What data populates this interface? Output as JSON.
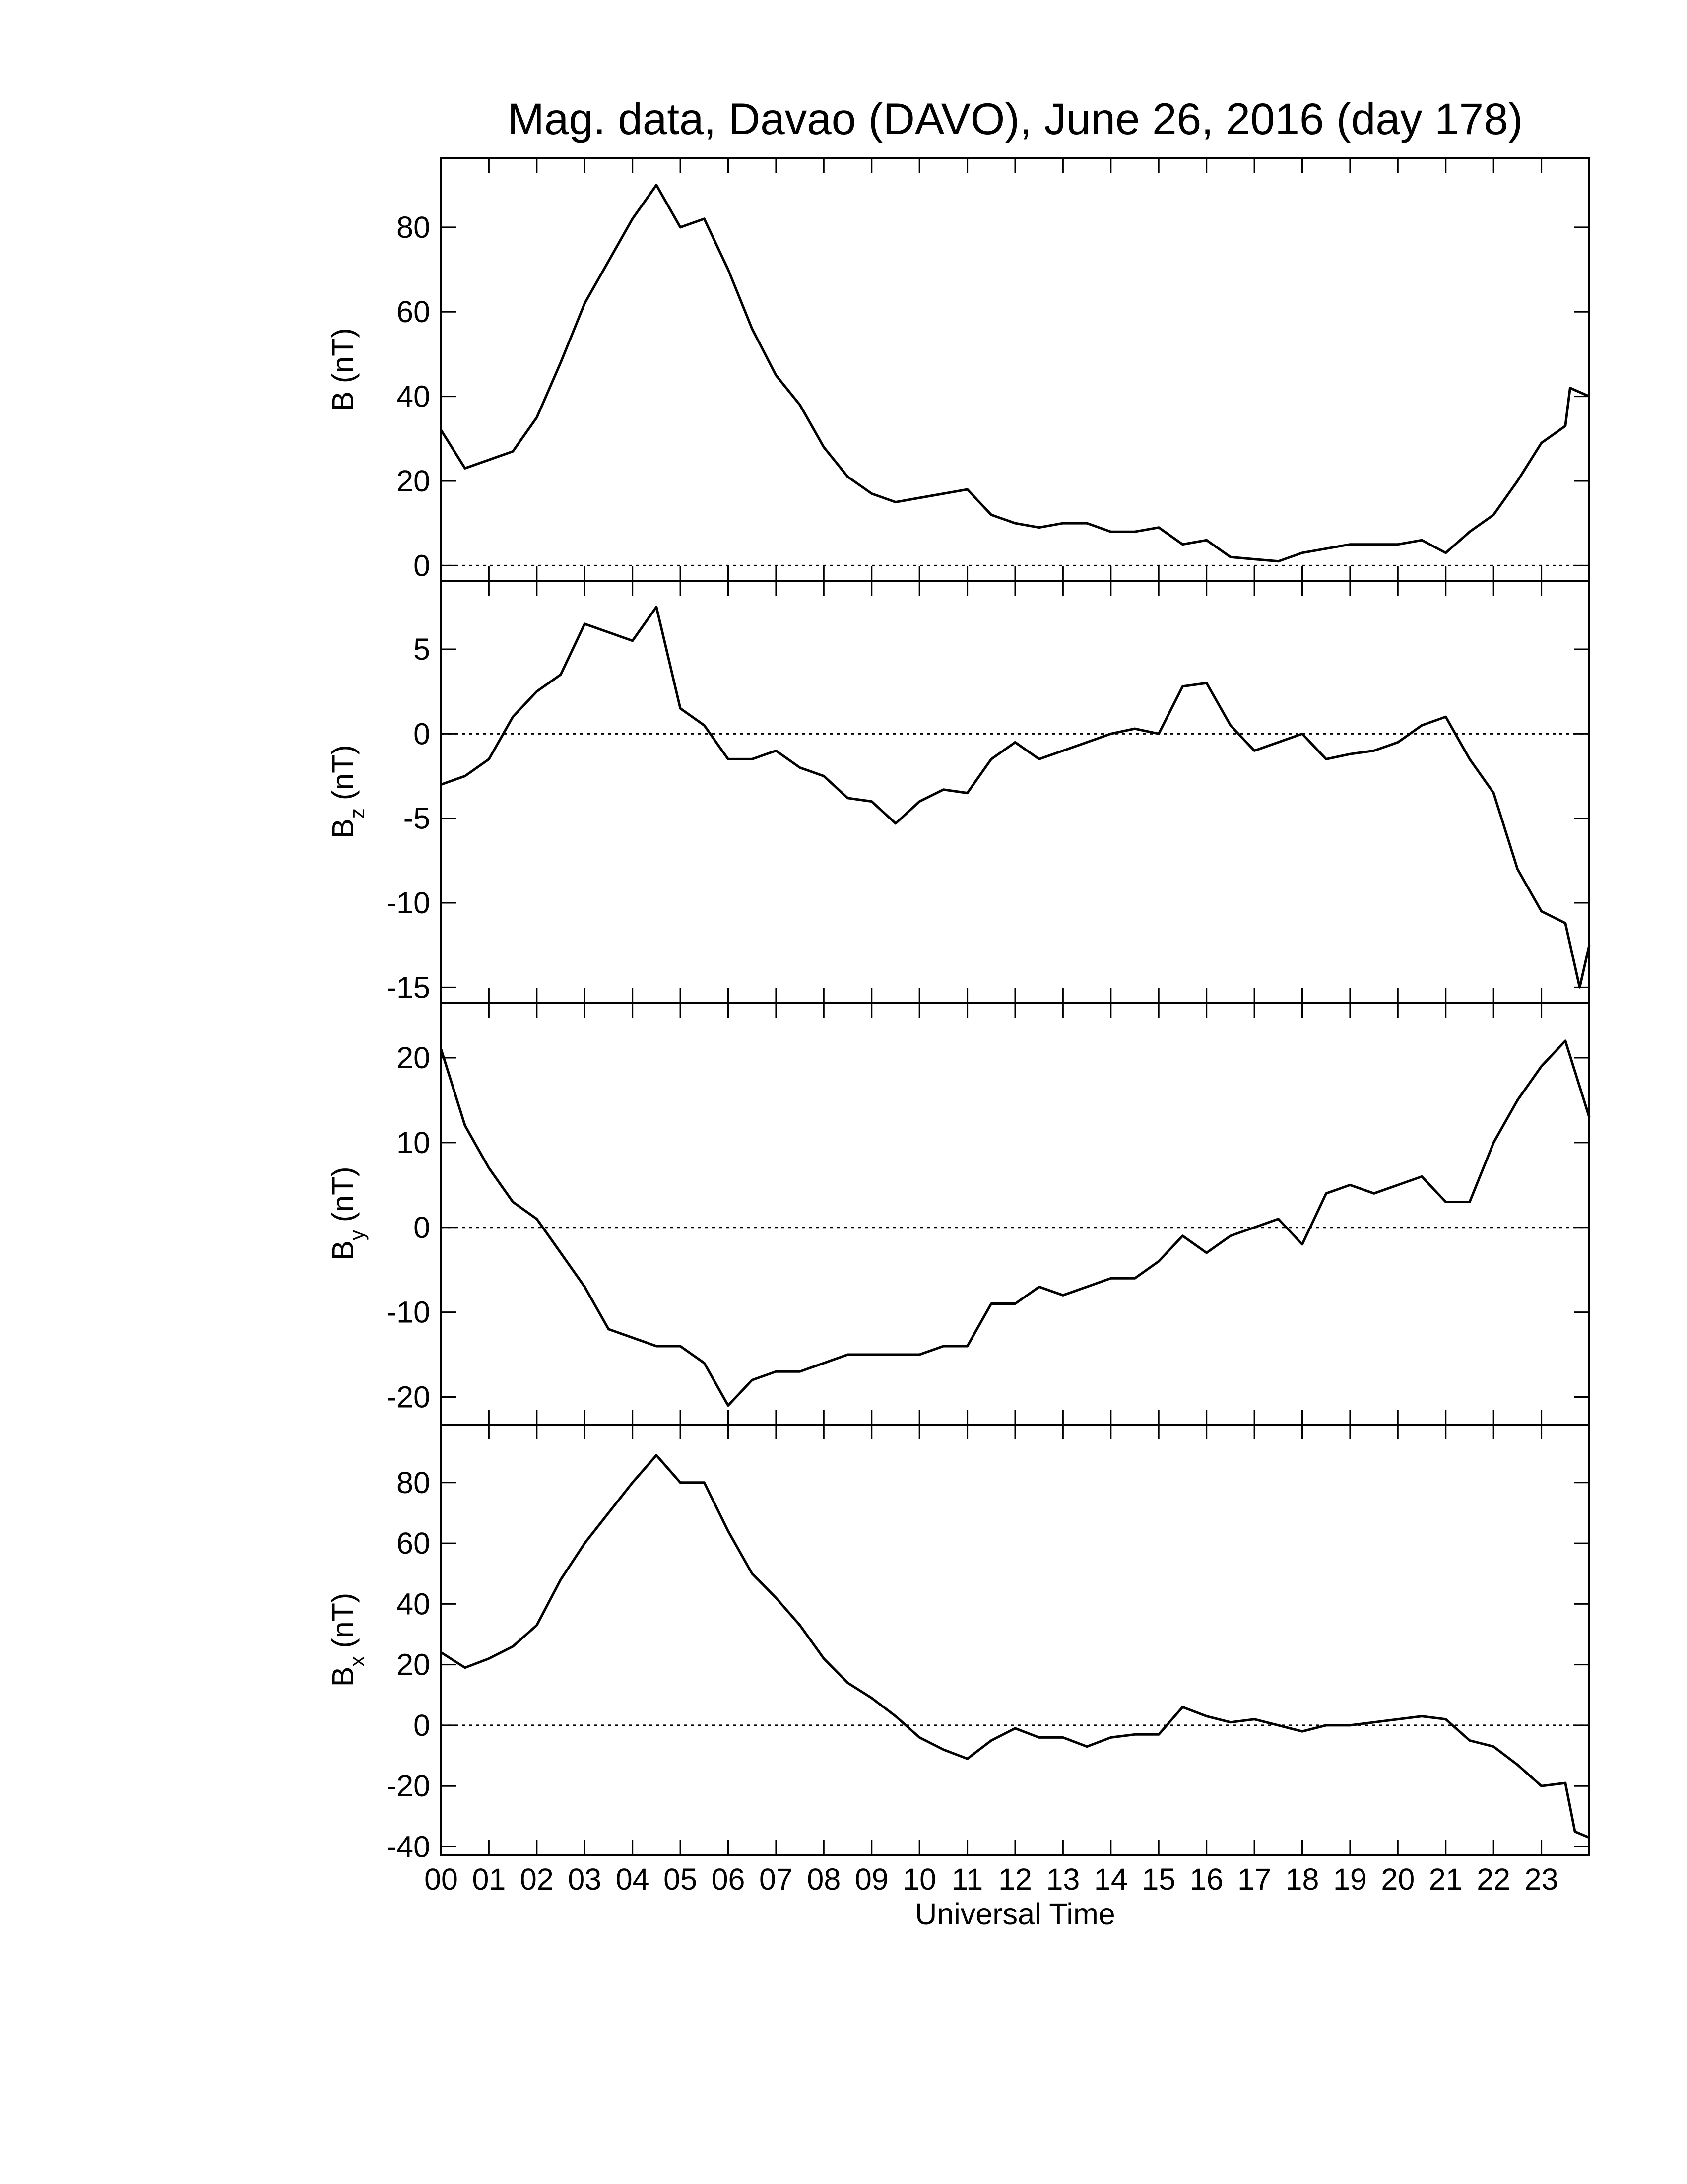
{
  "chart_data": [
    {
      "type": "line",
      "title": "Mag. data, Davao (DAVO), June 26, 2016 (day 178)",
      "ylabel": {
        "base": "B",
        "unit": "(nT)"
      },
      "x": [
        0,
        0.5,
        1,
        1.5,
        2,
        2.5,
        3,
        3.5,
        4,
        4.5,
        5,
        5.5,
        6,
        6.5,
        7,
        7.5,
        8,
        8.5,
        9,
        9.5,
        10,
        10.5,
        11,
        11.5,
        12,
        12.5,
        13,
        13.5,
        14,
        14.5,
        15,
        15.5,
        16,
        16.5,
        17,
        17.5,
        18,
        18.5,
        19,
        19.5,
        20,
        20.5,
        21,
        21.5,
        22,
        22.5,
        23,
        23.5,
        23.6,
        24
      ],
      "values": [
        32,
        23,
        25,
        27,
        35,
        48,
        62,
        72,
        82,
        90,
        80,
        82,
        70,
        56,
        45,
        38,
        28,
        21,
        17,
        15,
        16,
        17,
        18,
        12,
        10,
        9,
        10,
        10,
        8,
        8,
        9,
        5,
        6,
        2,
        1.5,
        1,
        3,
        4,
        5,
        5,
        5,
        6,
        3,
        8,
        12,
        20,
        29,
        33,
        42,
        40
      ],
      "color": "#000000",
      "xlim": [
        0,
        24
      ],
      "ylim": [
        -3.6,
        96.3
      ],
      "yticks": [
        0,
        20,
        40,
        60,
        80
      ],
      "hline": 0
    },
    {
      "type": "line",
      "ylabel": {
        "base": "B",
        "sub": "z",
        "unit": "(nT)"
      },
      "x": [
        0,
        0.5,
        1,
        1.5,
        2,
        2.5,
        3,
        3.5,
        4,
        4.5,
        5,
        5.5,
        6,
        6.5,
        7,
        7.5,
        8,
        8.5,
        9,
        9.5,
        10,
        10.5,
        11,
        11.5,
        12,
        12.5,
        13,
        13.5,
        14,
        14.5,
        15,
        15.5,
        16,
        16.5,
        17,
        17.5,
        18,
        18.5,
        19,
        19.5,
        20,
        20.5,
        21,
        21.5,
        22,
        22.5,
        23,
        23.5,
        23.8,
        24
      ],
      "values": [
        -3,
        -2.5,
        -1.5,
        1,
        2.5,
        3.5,
        6.5,
        6,
        5.5,
        7.5,
        1.5,
        0.5,
        -1.5,
        -1.5,
        -1,
        -2,
        -2.5,
        -3.8,
        -4,
        -5.3,
        -4,
        -3.3,
        -3.5,
        -1.5,
        -0.5,
        -1.5,
        -1,
        -0.5,
        0,
        0.3,
        0,
        2.8,
        3,
        0.5,
        -1,
        -0.5,
        0,
        -1.5,
        -1.2,
        -1,
        -0.5,
        0.5,
        1,
        -1.5,
        -3.5,
        -8,
        -10.5,
        -11.2,
        -15,
        -12.5
      ],
      "color": "#000000",
      "xlim": [
        0,
        24
      ],
      "ylim": [
        -15.9,
        9.05
      ],
      "yticks": [
        -15,
        -10,
        -5,
        0,
        5
      ],
      "hline": 0
    },
    {
      "type": "line",
      "ylabel": {
        "base": "B",
        "sub": "y",
        "unit": "(nT)"
      },
      "x": [
        0,
        0.5,
        1,
        1.5,
        2,
        2.5,
        3,
        3.5,
        4,
        4.5,
        5,
        5.5,
        6,
        6.5,
        7,
        7.5,
        8,
        8.5,
        9,
        9.5,
        10,
        10.5,
        11,
        11.5,
        12,
        12.5,
        13,
        13.5,
        14,
        14.5,
        15,
        15.5,
        16,
        16.5,
        17,
        17.5,
        18,
        18.5,
        19,
        19.5,
        20,
        20.5,
        21,
        21.5,
        22,
        22.5,
        23,
        23.5,
        24
      ],
      "values": [
        21,
        12,
        7,
        3,
        1,
        -3,
        -7,
        -12,
        -13,
        -14,
        -14,
        -16,
        -21,
        -18,
        -17,
        -17,
        -16,
        -15,
        -15,
        -15,
        -15,
        -14,
        -14,
        -9,
        -9,
        -7,
        -8,
        -7,
        -6,
        -6,
        -4,
        -1,
        -3,
        -1,
        0,
        1,
        -2,
        4,
        5,
        4,
        5,
        6,
        3,
        3,
        10,
        15,
        19,
        22,
        13
      ],
      "color": "#000000",
      "xlim": [
        0,
        24
      ],
      "ylim": [
        -23.25,
        26.5
      ],
      "yticks": [
        -20,
        -10,
        0,
        10,
        20
      ],
      "hline": 0
    },
    {
      "type": "line",
      "ylabel": {
        "base": "B",
        "sub": "x",
        "unit": "(nT)"
      },
      "xlabel": "Universal Time",
      "x": [
        0,
        0.5,
        1,
        1.5,
        2,
        2.5,
        3,
        3.5,
        4,
        4.5,
        5,
        5.5,
        6,
        6.5,
        7,
        7.5,
        8,
        8.5,
        9,
        9.5,
        10,
        10.5,
        11,
        11.5,
        12,
        12.5,
        13,
        13.5,
        14,
        14.5,
        15,
        15.5,
        16,
        16.5,
        17,
        17.5,
        18,
        18.5,
        19,
        19.5,
        20,
        20.5,
        21,
        21.5,
        22,
        22.5,
        23,
        23.5,
        23.7,
        24
      ],
      "values": [
        24,
        19,
        22,
        26,
        33,
        48,
        60,
        70,
        80,
        89,
        80,
        80,
        64,
        50,
        42,
        33,
        22,
        14,
        9,
        3,
        -4,
        -8,
        -11,
        -5,
        -1,
        -4,
        -4,
        -7,
        -4,
        -3,
        -3,
        6,
        3,
        1,
        2,
        0,
        -2,
        0,
        0,
        1,
        2,
        3,
        2,
        -5,
        -7,
        -13,
        -20,
        -19,
        -35,
        -37
      ],
      "color": "#000000",
      "xlim": [
        0,
        24
      ],
      "ylim": [
        -42.7,
        99.1
      ],
      "yticks": [
        -40,
        -20,
        0,
        20,
        40,
        60,
        80
      ],
      "hline": 0,
      "xticks": [
        {
          "value": 0,
          "label": "00"
        },
        {
          "value": 1,
          "label": "01"
        },
        {
          "value": 2,
          "label": "02"
        },
        {
          "value": 3,
          "label": "03"
        },
        {
          "value": 4,
          "label": "04"
        },
        {
          "value": 5,
          "label": "05"
        },
        {
          "value": 6,
          "label": "06"
        },
        {
          "value": 7,
          "label": "07"
        },
        {
          "value": 8,
          "label": "08"
        },
        {
          "value": 9,
          "label": "09"
        },
        {
          "value": 10,
          "label": "10"
        },
        {
          "value": 11,
          "label": "11"
        },
        {
          "value": 12,
          "label": "12"
        },
        {
          "value": 13,
          "label": "13"
        },
        {
          "value": 14,
          "label": "14"
        },
        {
          "value": 15,
          "label": "15"
        },
        {
          "value": 16,
          "label": "16"
        },
        {
          "value": 17,
          "label": "17"
        },
        {
          "value": 18,
          "label": "18"
        },
        {
          "value": 19,
          "label": "19"
        },
        {
          "value": 20,
          "label": "20"
        },
        {
          "value": 21,
          "label": "21"
        },
        {
          "value": 22,
          "label": "22"
        },
        {
          "value": 23,
          "label": "23"
        }
      ]
    }
  ]
}
